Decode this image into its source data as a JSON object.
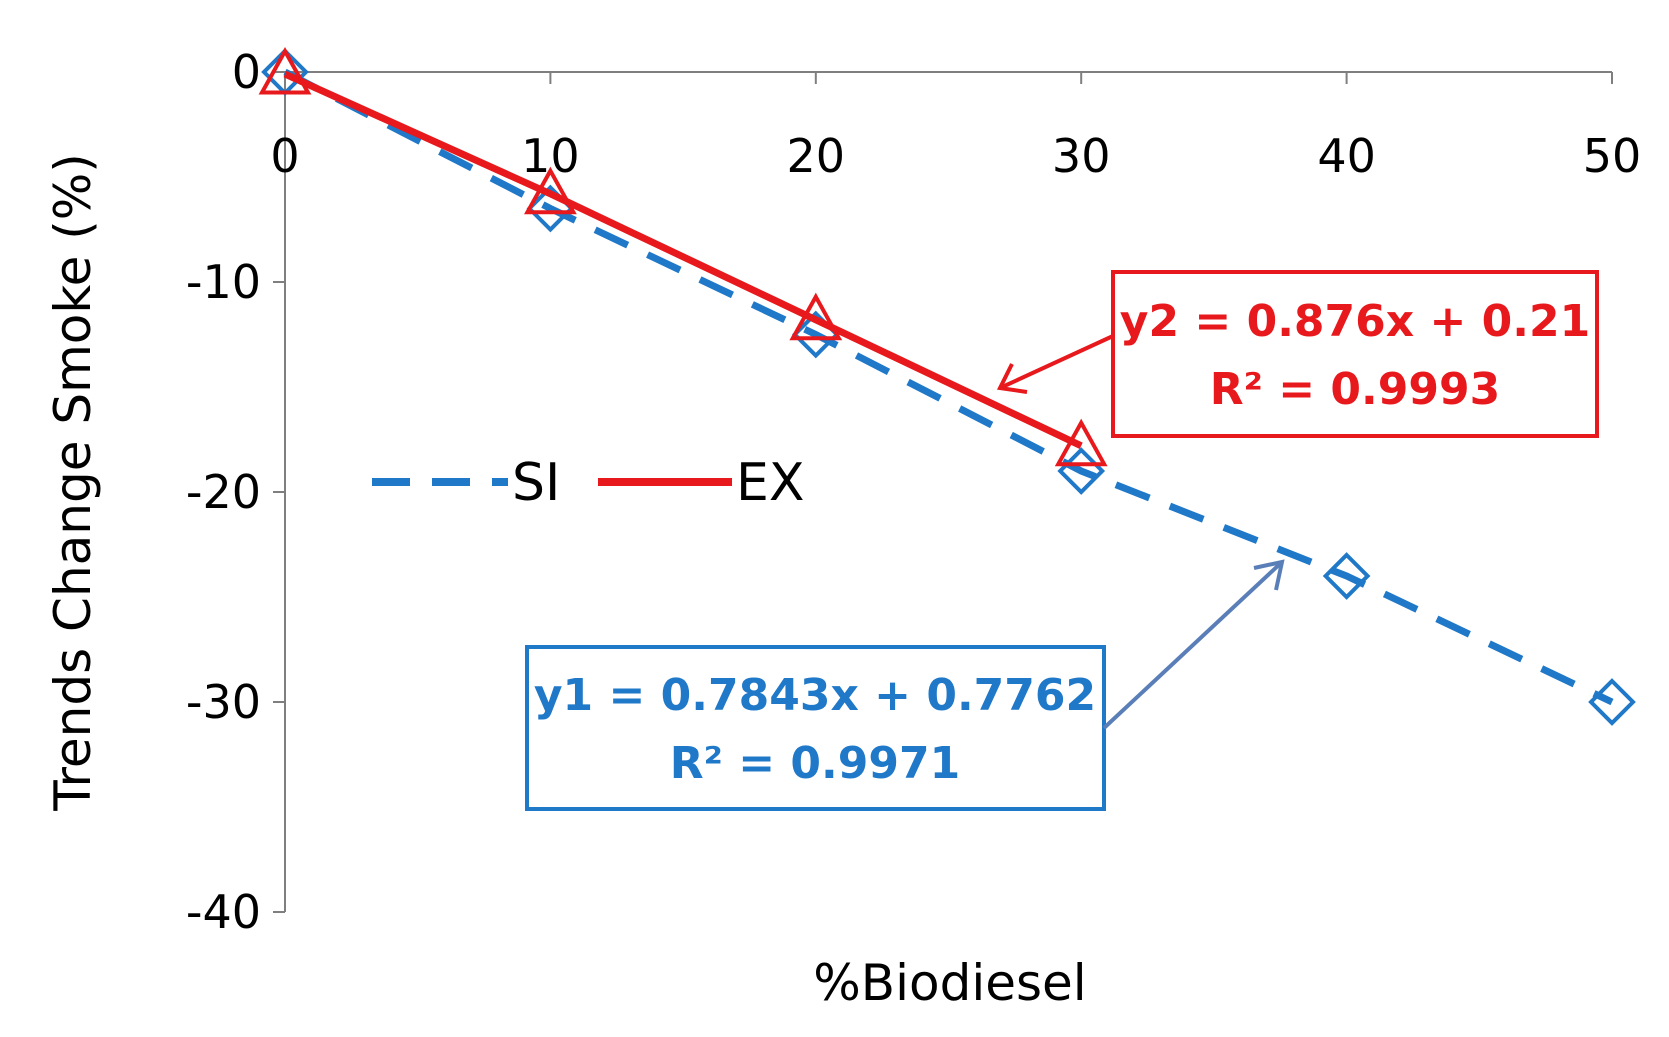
{
  "chart_data": {
    "type": "line",
    "title": "",
    "xlabel": "%Biodiesel",
    "ylabel": "Trends Change Smoke (%)",
    "xlim": [
      0,
      50
    ],
    "ylim": [
      -40,
      0
    ],
    "x_ticks": [
      0,
      10,
      20,
      30,
      40,
      50
    ],
    "y_ticks": [
      0,
      -10,
      -20,
      -30,
      -40
    ],
    "x_tick_labels": [
      "0",
      "10",
      "20",
      "30",
      "40",
      "50"
    ],
    "y_tick_labels": [
      "0",
      "-10",
      "-20",
      "-30",
      "-40"
    ],
    "x_axis_position": "top",
    "grid": false,
    "legend_position": "left-middle",
    "series": [
      {
        "name": "SI",
        "marker": "diamond",
        "line_style": "dashed",
        "color": "#1f78c8",
        "points": [
          [
            0,
            0
          ],
          [
            10,
            -6.5
          ],
          [
            20,
            -12.5
          ],
          [
            30,
            -19
          ],
          [
            40,
            -24
          ],
          [
            50,
            -30
          ]
        ],
        "trendline": {
          "label_line1": "y1 = 0.7843x + 0.7762",
          "label_line2": "R² = 0.9971"
        }
      },
      {
        "name": "EX",
        "marker": "triangle",
        "line_style": "solid",
        "color": "#e8191c",
        "points": [
          [
            0,
            -0.1
          ],
          [
            10,
            -5.8
          ],
          [
            20,
            -11.8
          ],
          [
            30,
            -17.8
          ]
        ],
        "trendline": {
          "label_line1": "y2 = 0.876x + 0.21",
          "label_line2": "R² = 0.9993"
        }
      }
    ]
  }
}
